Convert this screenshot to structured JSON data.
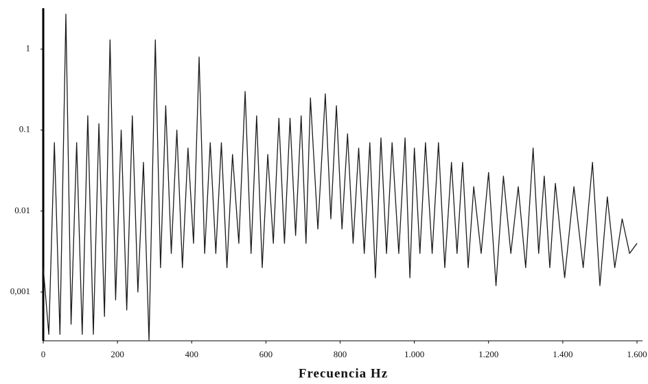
{
  "chart_data": {
    "type": "line",
    "x_label": "Frecuencia Hz",
    "log_y": true,
    "color": "#1a1a1a",
    "x": [
      0,
      15,
      30,
      45,
      61,
      75,
      90,
      105,
      120,
      135,
      150,
      165,
      180,
      195,
      210,
      225,
      240,
      255,
      270,
      285,
      302,
      316,
      330,
      345,
      360,
      375,
      390,
      405,
      420,
      435,
      450,
      465,
      480,
      495,
      510,
      527,
      544,
      560,
      575,
      590,
      605,
      620,
      635,
      650,
      665,
      680,
      695,
      708,
      720,
      740,
      760,
      775,
      790,
      805,
      820,
      835,
      850,
      865,
      880,
      895,
      910,
      925,
      940,
      958,
      975,
      988,
      1000,
      1015,
      1030,
      1048,
      1065,
      1082,
      1100,
      1115,
      1130,
      1145,
      1160,
      1180,
      1200,
      1220,
      1240,
      1260,
      1280,
      1300,
      1320,
      1335,
      1350,
      1365,
      1380,
      1405,
      1430,
      1455,
      1480,
      1500,
      1520,
      1540,
      1560,
      1580,
      1600
    ],
    "values": [
      0.002,
      0.0003,
      0.07,
      0.0003,
      2.7,
      0.0004,
      0.07,
      0.0003,
      0.15,
      0.0003,
      0.12,
      0.0005,
      1.3,
      0.0008,
      0.1,
      0.0006,
      0.15,
      0.001,
      0.04,
      0.00025,
      1.3,
      0.002,
      0.2,
      0.003,
      0.1,
      0.002,
      0.06,
      0.004,
      0.8,
      0.003,
      0.07,
      0.003,
      0.07,
      0.002,
      0.05,
      0.004,
      0.3,
      0.003,
      0.15,
      0.002,
      0.05,
      0.004,
      0.14,
      0.004,
      0.14,
      0.005,
      0.15,
      0.004,
      0.25,
      0.006,
      0.28,
      0.008,
      0.2,
      0.006,
      0.09,
      0.004,
      0.06,
      0.003,
      0.07,
      0.0015,
      0.08,
      0.003,
      0.07,
      0.003,
      0.08,
      0.0015,
      0.06,
      0.003,
      0.07,
      0.003,
      0.07,
      0.002,
      0.04,
      0.003,
      0.04,
      0.002,
      0.02,
      0.003,
      0.03,
      0.0012,
      0.027,
      0.003,
      0.02,
      0.002,
      0.06,
      0.003,
      0.027,
      0.002,
      0.022,
      0.0015,
      0.02,
      0.002,
      0.04,
      0.0012,
      0.015,
      0.002,
      0.008,
      0.003,
      0.004
    ],
    "xlim": [
      0,
      1600
    ],
    "ylim": [
      0.00025,
      3.2
    ],
    "xticks": [
      0,
      200,
      400,
      600,
      800,
      {
        "value": 1000,
        "label": "1.000"
      },
      {
        "value": 1200,
        "label": "1.200"
      },
      {
        "value": 1400,
        "label": "1.400"
      },
      {
        "value": 1600,
        "label": "1.600"
      }
    ],
    "yticks": [
      {
        "value": 0.001,
        "label": "0,001"
      },
      0.01,
      0.1,
      1
    ]
  }
}
